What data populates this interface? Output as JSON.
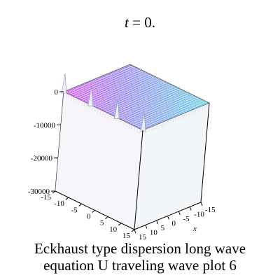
{
  "title": {
    "variable": "t",
    "equals": " = ",
    "value": "0."
  },
  "caption": {
    "line1": "Eckhaust type dispersion long wave",
    "line2": "equation U traveling wave plot 6"
  },
  "chart_data": {
    "type": "surface3d",
    "title": "t = 0.",
    "xlabel": "x",
    "ylabel": "",
    "zlabel": "",
    "xlim": [
      -15,
      15
    ],
    "ylim": [
      -15,
      15
    ],
    "zlim": [
      -30000,
      0
    ],
    "x_ticks": [
      "-15",
      "-10",
      "-5",
      "0",
      "5",
      "10",
      "15"
    ],
    "y_ticks": [
      "-15",
      "-10",
      "-5",
      "0",
      "5",
      "10",
      "15"
    ],
    "z_ticks": [
      "0",
      "-10000",
      "-20000",
      "-30000"
    ],
    "surface_level": 0,
    "grid": true,
    "colormap": [
      "#d957f4",
      "#9a86ee",
      "#7eaee8",
      "#58e0dc"
    ],
    "peaks": [
      {
        "x": -15,
        "y": -15
      },
      {
        "x": -15,
        "y": -5
      },
      {
        "x": -15,
        "y": 5
      },
      {
        "x": -15,
        "y": 15
      }
    ]
  }
}
